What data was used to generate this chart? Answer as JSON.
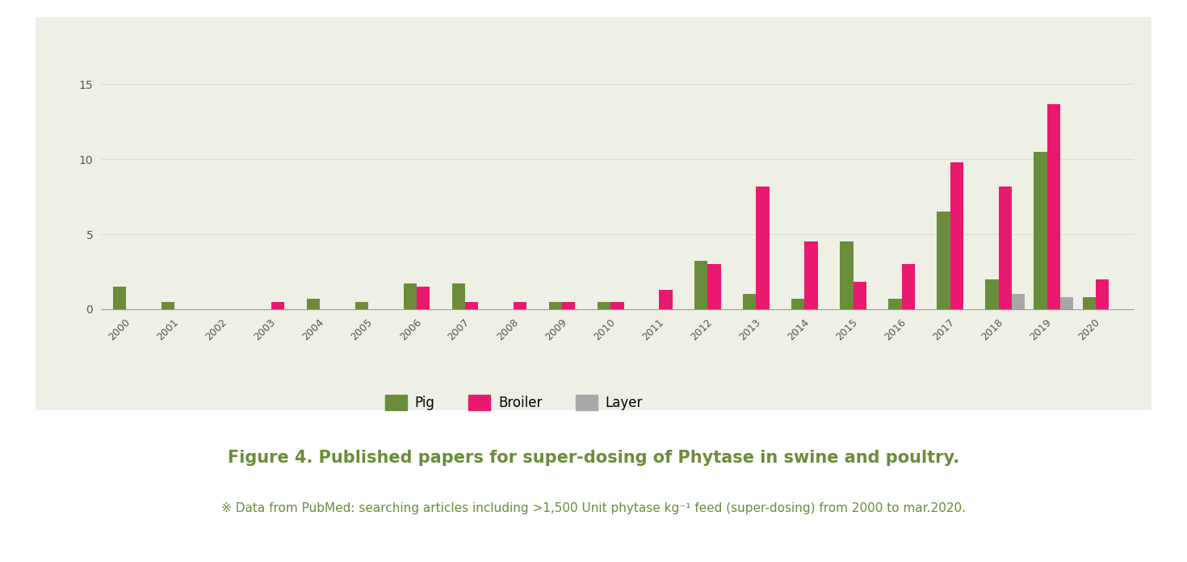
{
  "years": [
    2000,
    2001,
    2002,
    2003,
    2004,
    2005,
    2006,
    2007,
    2008,
    2009,
    2010,
    2011,
    2012,
    2013,
    2014,
    2015,
    2016,
    2017,
    2018,
    2019,
    2020
  ],
  "pig": [
    1.5,
    0.5,
    0,
    0,
    0.7,
    0.5,
    1.7,
    1.7,
    0,
    0.5,
    0.5,
    0,
    3.2,
    1.0,
    0.7,
    4.5,
    0.7,
    6.5,
    2.0,
    10.5,
    0.8
  ],
  "broiler": [
    0,
    0,
    0,
    0.5,
    0,
    0,
    1.5,
    0.5,
    0.5,
    0.5,
    0.5,
    1.3,
    3.0,
    8.2,
    4.5,
    1.8,
    3.0,
    9.8,
    8.2,
    13.7,
    2.0
  ],
  "layer": [
    0,
    0,
    0,
    0,
    0,
    0,
    0,
    0,
    0,
    0,
    0,
    0,
    0,
    0,
    0,
    0,
    0,
    0,
    1.0,
    0.8,
    0
  ],
  "pig_color": "#6b8c3a",
  "broiler_color": "#e8196e",
  "layer_color": "#a8a8a8",
  "bg_color": "#eff0e5",
  "fig_bg": "#ffffff",
  "ylim": [
    0,
    15
  ],
  "yticks": [
    0,
    5,
    10,
    15
  ],
  "title": "Figure 4. Published papers for super-dosing of Phytase in swine and poultry.",
  "subtitle": "※ Data from PubMed: searching articles including >1,500 Unit phytase kg⁻¹ feed (super-dosing) from 2000 to mar.2020.",
  "title_color": "#6b8c3a",
  "subtitle_color": "#6b8c3a",
  "title_fontsize": 15,
  "subtitle_fontsize": 11,
  "legend_labels": [
    "Pig",
    "Broiler",
    "Layer"
  ]
}
